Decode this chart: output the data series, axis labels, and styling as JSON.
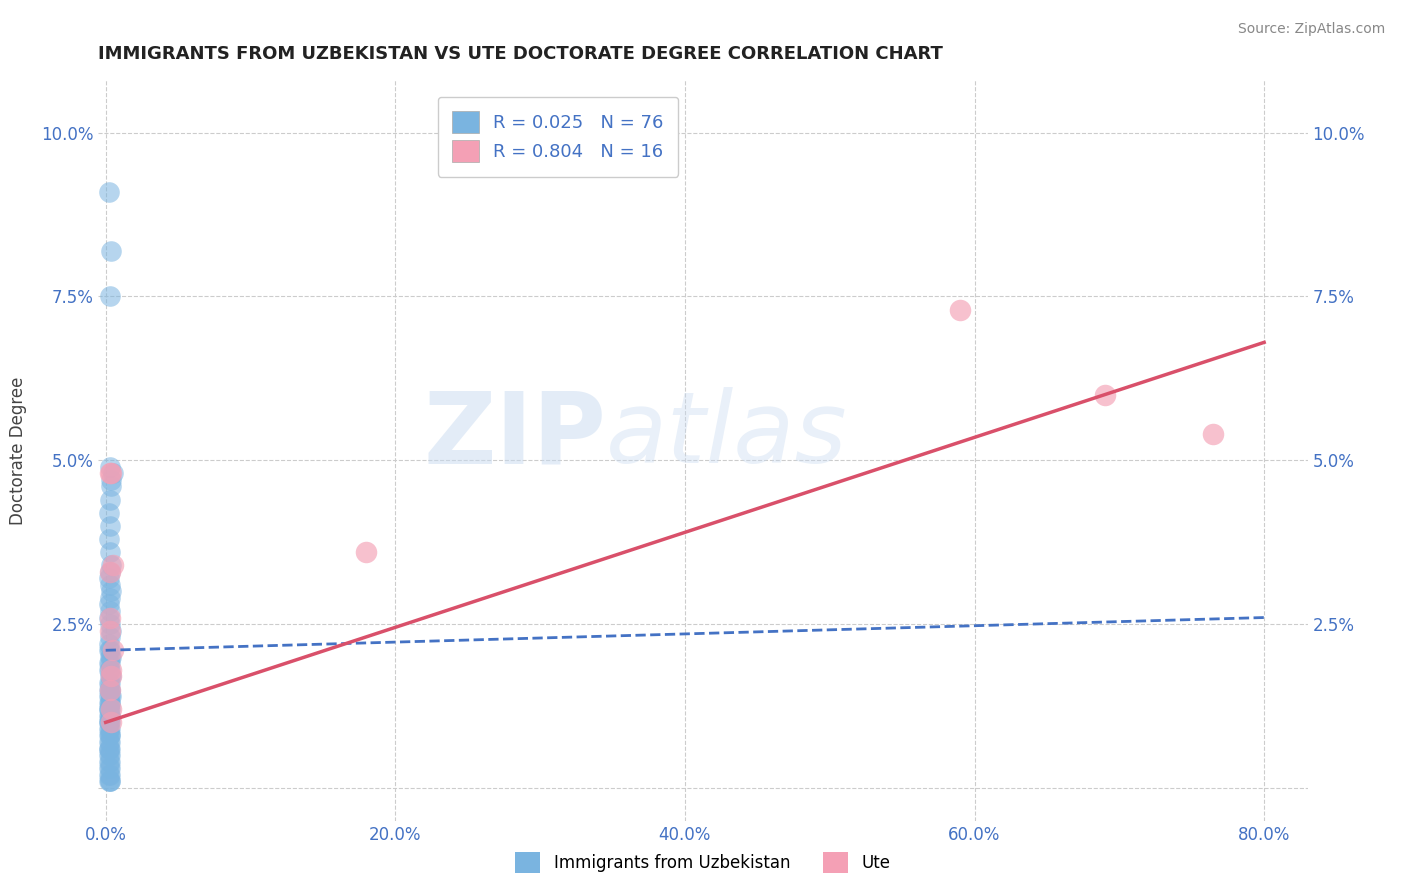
{
  "title": "IMMIGRANTS FROM UZBEKISTAN VS UTE DOCTORATE DEGREE CORRELATION CHART",
  "source": "Source: ZipAtlas.com",
  "ylabel": "Doctorate Degree",
  "watermark_zip": "ZIP",
  "watermark_atlas": "atlas",
  "legend1_label": "R = 0.025   N = 76",
  "legend2_label": "R = 0.804   N = 16",
  "legend_bottom1": "Immigrants from Uzbekistan",
  "legend_bottom2": "Ute",
  "xlim": [
    -0.005,
    0.83
  ],
  "ylim": [
    -0.005,
    0.108
  ],
  "xticks": [
    0.0,
    0.2,
    0.4,
    0.6,
    0.8
  ],
  "xtick_labels": [
    "0.0%",
    "20.0%",
    "40.0%",
    "60.0%",
    "80.0%"
  ],
  "yticks": [
    0.0,
    0.025,
    0.05,
    0.075,
    0.1
  ],
  "ytick_labels_left": [
    "",
    "2.5%",
    "5.0%",
    "7.5%",
    "10.0%"
  ],
  "ytick_labels_right": [
    "",
    "2.5%",
    "5.0%",
    "7.5%",
    "10.0%"
  ],
  "blue_color": "#7ab4e0",
  "pink_color": "#f4a0b5",
  "blue_line_color": "#4472c4",
  "pink_line_color": "#d9506a",
  "tick_color": "#4472c4",
  "grid_color": "#cccccc",
  "blue_x": [
    0.002,
    0.004,
    0.003,
    0.003,
    0.005,
    0.004,
    0.004,
    0.003,
    0.002,
    0.003,
    0.002,
    0.003,
    0.004,
    0.003,
    0.002,
    0.003,
    0.004,
    0.003,
    0.002,
    0.003,
    0.002,
    0.003,
    0.004,
    0.003,
    0.002,
    0.003,
    0.002,
    0.003,
    0.004,
    0.003,
    0.002,
    0.003,
    0.002,
    0.003,
    0.004,
    0.003,
    0.002,
    0.003,
    0.002,
    0.003,
    0.002,
    0.003,
    0.004,
    0.003,
    0.002,
    0.003,
    0.002,
    0.003,
    0.002,
    0.003,
    0.002,
    0.003,
    0.002,
    0.003,
    0.002,
    0.003,
    0.002,
    0.003,
    0.002,
    0.003,
    0.002,
    0.003,
    0.002,
    0.003,
    0.002,
    0.003,
    0.002,
    0.003,
    0.002,
    0.003,
    0.002,
    0.003,
    0.002,
    0.003,
    0.002,
    0.003
  ],
  "blue_y": [
    0.091,
    0.082,
    0.075,
    0.049,
    0.048,
    0.047,
    0.046,
    0.044,
    0.042,
    0.04,
    0.038,
    0.036,
    0.034,
    0.033,
    0.032,
    0.031,
    0.03,
    0.029,
    0.028,
    0.027,
    0.026,
    0.025,
    0.024,
    0.023,
    0.022,
    0.021,
    0.021,
    0.02,
    0.02,
    0.019,
    0.019,
    0.018,
    0.018,
    0.017,
    0.017,
    0.016,
    0.016,
    0.015,
    0.015,
    0.015,
    0.014,
    0.014,
    0.014,
    0.013,
    0.013,
    0.013,
    0.012,
    0.012,
    0.012,
    0.011,
    0.011,
    0.011,
    0.01,
    0.01,
    0.01,
    0.009,
    0.009,
    0.008,
    0.008,
    0.008,
    0.007,
    0.007,
    0.006,
    0.006,
    0.006,
    0.005,
    0.005,
    0.004,
    0.004,
    0.003,
    0.003,
    0.002,
    0.002,
    0.001,
    0.001,
    0.001
  ],
  "pink_x": [
    0.003,
    0.004,
    0.003,
    0.18,
    0.005,
    0.003,
    0.003,
    0.005,
    0.004,
    0.59,
    0.004,
    0.003,
    0.69,
    0.765,
    0.004,
    0.004
  ],
  "pink_y": [
    0.048,
    0.048,
    0.033,
    0.036,
    0.034,
    0.026,
    0.024,
    0.021,
    0.018,
    0.073,
    0.017,
    0.015,
    0.06,
    0.054,
    0.012,
    0.01
  ],
  "blue_line_x": [
    0.0,
    0.8
  ],
  "blue_line_y": [
    0.021,
    0.026
  ],
  "pink_line_x": [
    0.0,
    0.8
  ],
  "pink_line_y": [
    0.01,
    0.068
  ]
}
